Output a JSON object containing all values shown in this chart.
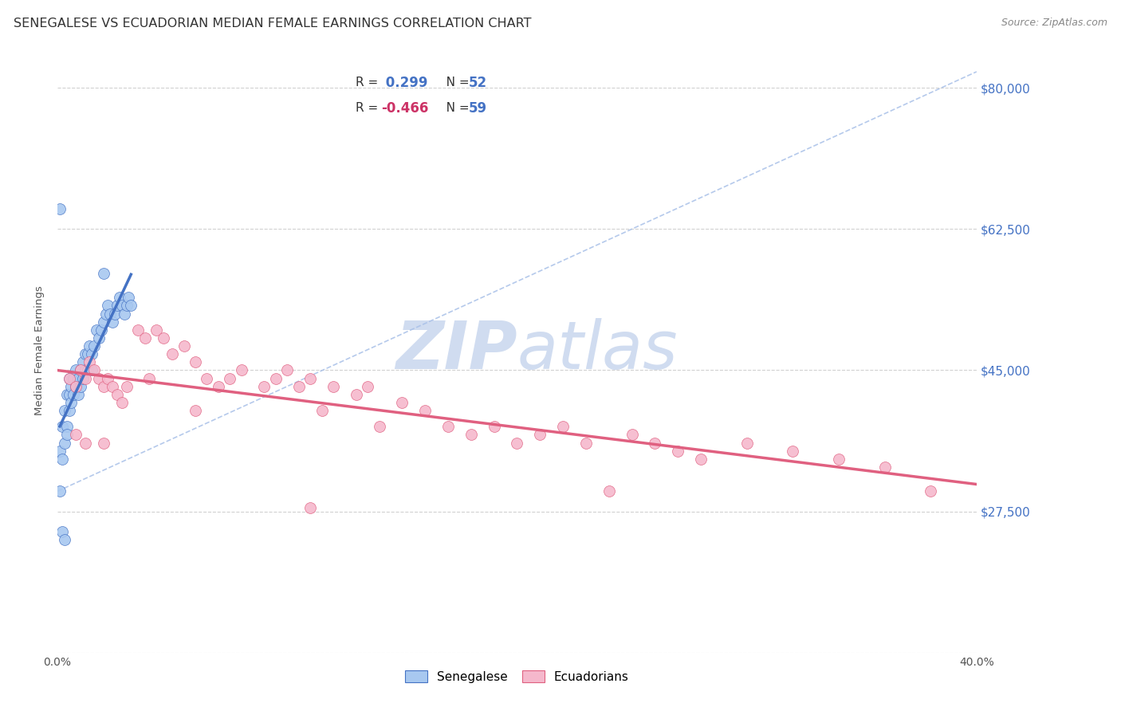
{
  "title": "SENEGALESE VS ECUADORIAN MEDIAN FEMALE EARNINGS CORRELATION CHART",
  "source": "Source: ZipAtlas.com",
  "ylabel": "Median Female Earnings",
  "yticks": [
    10000,
    27500,
    45000,
    62500,
    80000
  ],
  "ytick_labels": [
    "",
    "$27,500",
    "$45,000",
    "$62,500",
    "$80,000"
  ],
  "xmin": 0.0,
  "xmax": 0.4,
  "ymin": 10000,
  "ymax": 85000,
  "blue_color": "#A8C8F0",
  "pink_color": "#F5B8CC",
  "trend_blue": "#4472C4",
  "trend_pink": "#E06080",
  "dash_color": "#A8C0E8",
  "watermark_text": "ZIPAtlas",
  "watermark_color": "#D0DCF0",
  "title_fontsize": 11.5,
  "source_fontsize": 9,
  "r1_color": "#4472C4",
  "r2_color": "#CC3366",
  "n_color": "#4472C4",
  "right_ytick_color": "#4472C4",
  "sen_x": [
    0.001,
    0.001,
    0.002,
    0.002,
    0.003,
    0.003,
    0.004,
    0.004,
    0.004,
    0.005,
    0.005,
    0.005,
    0.006,
    0.006,
    0.007,
    0.007,
    0.008,
    0.008,
    0.009,
    0.009,
    0.01,
    0.01,
    0.011,
    0.011,
    0.012,
    0.012,
    0.013,
    0.013,
    0.014,
    0.015,
    0.015,
    0.016,
    0.017,
    0.018,
    0.019,
    0.02,
    0.021,
    0.022,
    0.023,
    0.024,
    0.025,
    0.026,
    0.027,
    0.028,
    0.029,
    0.03,
    0.031,
    0.032,
    0.001,
    0.002,
    0.003,
    0.02
  ],
  "sen_y": [
    35000,
    30000,
    38000,
    34000,
    40000,
    36000,
    42000,
    38000,
    37000,
    44000,
    42000,
    40000,
    43000,
    41000,
    44000,
    42000,
    45000,
    43000,
    44000,
    42000,
    45000,
    43000,
    46000,
    44000,
    47000,
    45000,
    47000,
    45000,
    48000,
    47000,
    45000,
    48000,
    50000,
    49000,
    50000,
    51000,
    52000,
    53000,
    52000,
    51000,
    52000,
    53000,
    54000,
    53000,
    52000,
    53000,
    54000,
    53000,
    65000,
    25000,
    24000,
    57000
  ],
  "ecu_x": [
    0.005,
    0.008,
    0.01,
    0.012,
    0.014,
    0.016,
    0.018,
    0.02,
    0.022,
    0.024,
    0.026,
    0.028,
    0.03,
    0.035,
    0.038,
    0.04,
    0.043,
    0.046,
    0.05,
    0.055,
    0.06,
    0.065,
    0.07,
    0.075,
    0.08,
    0.09,
    0.095,
    0.1,
    0.105,
    0.11,
    0.115,
    0.12,
    0.13,
    0.135,
    0.14,
    0.15,
    0.16,
    0.17,
    0.18,
    0.19,
    0.2,
    0.21,
    0.22,
    0.23,
    0.25,
    0.26,
    0.27,
    0.28,
    0.3,
    0.32,
    0.34,
    0.36,
    0.38,
    0.008,
    0.012,
    0.02,
    0.06,
    0.11,
    0.24
  ],
  "ecu_y": [
    44000,
    43000,
    45000,
    44000,
    46000,
    45000,
    44000,
    43000,
    44000,
    43000,
    42000,
    41000,
    43000,
    50000,
    49000,
    44000,
    50000,
    49000,
    47000,
    48000,
    46000,
    44000,
    43000,
    44000,
    45000,
    43000,
    44000,
    45000,
    43000,
    44000,
    40000,
    43000,
    42000,
    43000,
    38000,
    41000,
    40000,
    38000,
    37000,
    38000,
    36000,
    37000,
    38000,
    36000,
    37000,
    36000,
    35000,
    34000,
    36000,
    35000,
    34000,
    33000,
    30000,
    37000,
    36000,
    36000,
    40000,
    28000,
    30000
  ]
}
